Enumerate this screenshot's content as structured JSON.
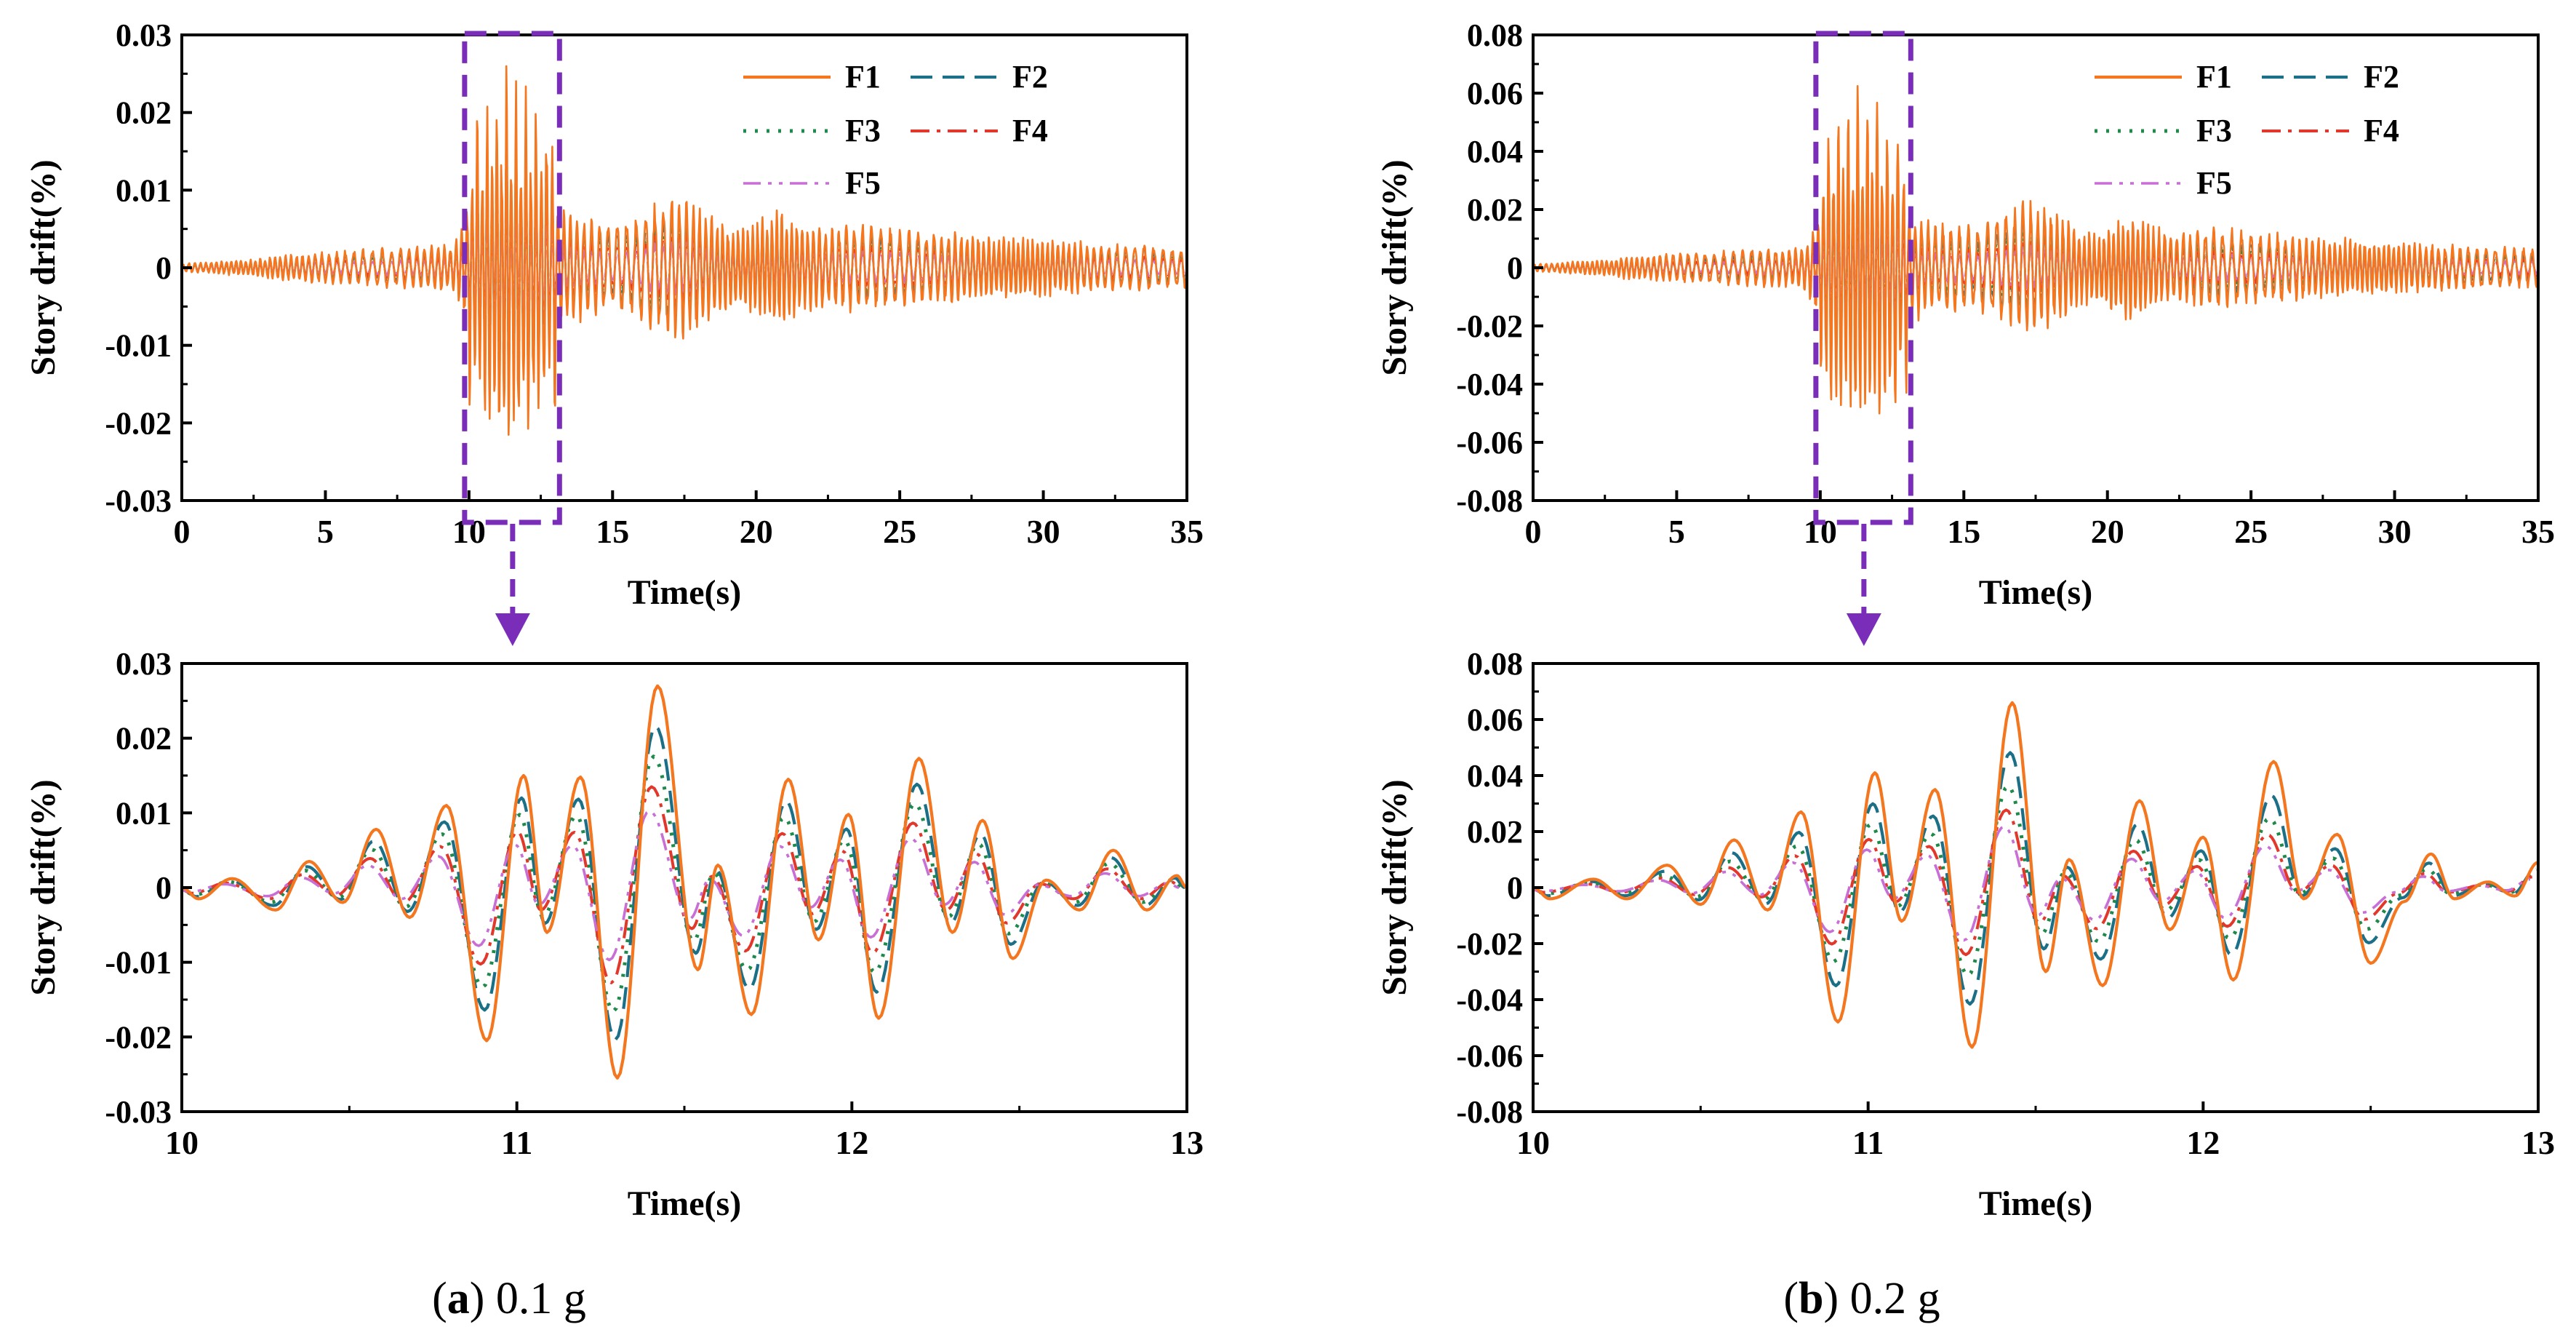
{
  "colors": {
    "F1": "#F4761F",
    "F2": "#1B6F86",
    "F3": "#1E8A4A",
    "F4": "#E2382C",
    "F5": "#C86FD6",
    "highlight": "#7A2DB8"
  },
  "captions": [
    {
      "letter": "a",
      "text": " 0.1 g"
    },
    {
      "letter": "b",
      "text": " 0.2 g"
    }
  ],
  "chart_data": [
    {
      "id": "a-full",
      "type": "line",
      "xlabel": "Time(s)",
      "ylabel": "Story drift(%)",
      "xlim": [
        0,
        35
      ],
      "ylim": [
        -0.03,
        0.03
      ],
      "xticks": [
        0,
        5,
        10,
        15,
        20,
        25,
        30,
        35
      ],
      "xtick_labels": [
        "0",
        "5",
        "10",
        "15",
        "20",
        "25",
        "30",
        "35"
      ],
      "yticks": [
        0.03,
        0.02,
        0.01,
        0,
        -0.01,
        -0.02,
        -0.03
      ],
      "ytick_labels": [
        "0.03",
        "0.02",
        "0.01",
        "0",
        "-0.01",
        "-0.02",
        "-0.03"
      ],
      "legend": [
        "F1",
        "F2",
        "F3",
        "F4",
        "F5"
      ],
      "highlight_range": [
        10,
        13
      ],
      "peak_F1": 0.027,
      "series": [
        {
          "name": "F1",
          "scale": 1.0
        },
        {
          "name": "F2",
          "scale": 0.8
        },
        {
          "name": "F3",
          "scale": 0.65
        },
        {
          "name": "F4",
          "scale": 0.5
        },
        {
          "name": "F5",
          "scale": 0.38
        }
      ]
    },
    {
      "id": "a-zoom",
      "type": "line",
      "xlabel": "Time(s)",
      "ylabel": "Story drift(%)",
      "xlim": [
        10,
        13
      ],
      "ylim": [
        -0.03,
        0.03
      ],
      "xticks": [
        10,
        11,
        12,
        13
      ],
      "xtick_labels": [
        "10",
        "11",
        "12",
        "13"
      ],
      "yticks": [
        0.03,
        0.02,
        0.01,
        0,
        -0.01,
        -0.02,
        -0.03
      ],
      "ytick_labels": [
        "0.03",
        "0.02",
        "0.01",
        "0",
        "-0.01",
        "-0.02",
        "-0.03"
      ],
      "F1_extrema": [
        [
          10.05,
          -0.0015
        ],
        [
          10.15,
          0.0012
        ],
        [
          10.28,
          -0.003
        ],
        [
          10.38,
          0.0035
        ],
        [
          10.48,
          -0.002
        ],
        [
          10.58,
          0.0078
        ],
        [
          10.68,
          -0.004
        ],
        [
          10.79,
          0.011
        ],
        [
          10.91,
          -0.0205
        ],
        [
          11.02,
          0.015
        ],
        [
          11.09,
          -0.006
        ],
        [
          11.19,
          0.0148
        ],
        [
          11.3,
          -0.0255
        ],
        [
          11.42,
          0.027
        ],
        [
          11.54,
          -0.011
        ],
        [
          11.6,
          0.003
        ],
        [
          11.7,
          -0.017
        ],
        [
          11.81,
          0.0145
        ],
        [
          11.9,
          -0.007
        ],
        [
          11.99,
          0.0098
        ],
        [
          12.08,
          -0.0175
        ],
        [
          12.2,
          0.0173
        ],
        [
          12.3,
          -0.006
        ],
        [
          12.39,
          0.009
        ],
        [
          12.48,
          -0.0095
        ],
        [
          12.58,
          0.001
        ],
        [
          12.68,
          -0.003
        ],
        [
          12.78,
          0.005
        ],
        [
          12.88,
          -0.003
        ],
        [
          12.97,
          0.0016
        ]
      ],
      "series": [
        {
          "name": "F1",
          "scale": 1.0
        },
        {
          "name": "F2",
          "scale": 0.8
        },
        {
          "name": "F3",
          "scale": 0.65
        },
        {
          "name": "F4",
          "scale": 0.5
        },
        {
          "name": "F5",
          "scale": 0.38
        }
      ]
    },
    {
      "id": "b-full",
      "type": "line",
      "xlabel": "Time(s)",
      "ylabel": "Story drift(%)",
      "xlim": [
        0,
        35
      ],
      "ylim": [
        -0.08,
        0.08
      ],
      "xticks": [
        0,
        5,
        10,
        15,
        20,
        25,
        30,
        35
      ],
      "xtick_labels": [
        "0",
        "5",
        "10",
        "15",
        "20",
        "25",
        "30",
        "35"
      ],
      "yticks": [
        0.08,
        0.06,
        0.04,
        0.02,
        0,
        -0.02,
        -0.04,
        -0.06,
        -0.08
      ],
      "ytick_labels": [
        "0.08",
        "0.06",
        "0.04",
        "0.02",
        "0",
        "-0.02",
        "-0.04",
        "-0.06",
        "-0.08"
      ],
      "legend": [
        "F1",
        "F2",
        "F3",
        "F4",
        "F5"
      ],
      "highlight_range": [
        10,
        13
      ],
      "peak_F1": 0.066,
      "series": [
        {
          "name": "F1",
          "scale": 1.0
        },
        {
          "name": "F2",
          "scale": 0.73
        },
        {
          "name": "F3",
          "scale": 0.55
        },
        {
          "name": "F4",
          "scale": 0.42
        },
        {
          "name": "F5",
          "scale": 0.33
        }
      ]
    },
    {
      "id": "b-zoom",
      "type": "line",
      "xlabel": "Time(s)",
      "ylabel": "Story drift(%)",
      "xlim": [
        10,
        13
      ],
      "ylim": [
        -0.08,
        0.08
      ],
      "xticks": [
        10,
        11,
        12,
        13
      ],
      "xtick_labels": [
        "10",
        "11",
        "12",
        "13"
      ],
      "yticks": [
        0.08,
        0.06,
        0.04,
        0.02,
        0,
        -0.02,
        -0.04,
        -0.06,
        -0.08
      ],
      "ytick_labels": [
        "0.08",
        "0.06",
        "0.04",
        "0.02",
        "0",
        "-0.02",
        "-0.04",
        "-0.06",
        "-0.08"
      ],
      "F1_extrema": [
        [
          10.05,
          -0.004
        ],
        [
          10.18,
          0.003
        ],
        [
          10.28,
          -0.004
        ],
        [
          10.4,
          0.008
        ],
        [
          10.5,
          -0.006
        ],
        [
          10.6,
          0.017
        ],
        [
          10.7,
          -0.008
        ],
        [
          10.8,
          0.027
        ],
        [
          10.91,
          -0.048
        ],
        [
          11.02,
          0.041
        ],
        [
          11.1,
          -0.012
        ],
        [
          11.2,
          0.035
        ],
        [
          11.31,
          -0.057
        ],
        [
          11.43,
          0.066
        ],
        [
          11.53,
          -0.03
        ],
        [
          11.6,
          0.01
        ],
        [
          11.7,
          -0.035
        ],
        [
          11.81,
          0.031
        ],
        [
          11.9,
          -0.015
        ],
        [
          12.0,
          0.018
        ],
        [
          12.09,
          -0.033
        ],
        [
          12.21,
          0.045
        ],
        [
          12.3,
          -0.004
        ],
        [
          12.4,
          0.019
        ],
        [
          12.5,
          -0.027
        ],
        [
          12.6,
          -0.005
        ],
        [
          12.68,
          0.012
        ],
        [
          12.75,
          -0.004
        ],
        [
          12.85,
          0.002
        ],
        [
          12.93,
          -0.003
        ],
        [
          13.0,
          0.009
        ]
      ],
      "series": [
        {
          "name": "F1",
          "scale": 1.0
        },
        {
          "name": "F2",
          "scale": 0.73
        },
        {
          "name": "F3",
          "scale": 0.55
        },
        {
          "name": "F4",
          "scale": 0.42
        },
        {
          "name": "F5",
          "scale": 0.33
        }
      ]
    }
  ]
}
